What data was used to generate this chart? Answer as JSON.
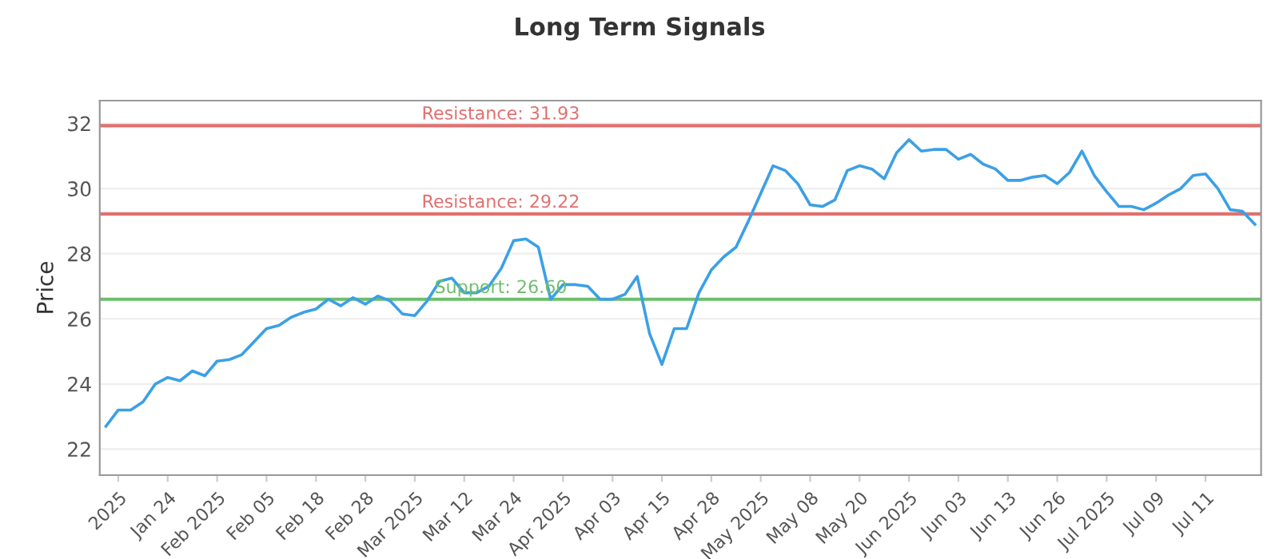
{
  "chart_data": {
    "type": "line",
    "title": "Long Term Signals",
    "ylabel": "Price",
    "categories": [
      null,
      "2025",
      null,
      null,
      null,
      "Jan 24",
      null,
      null,
      null,
      "Feb 2025",
      null,
      null,
      null,
      "Feb 05",
      null,
      null,
      null,
      "Feb 18",
      null,
      null,
      null,
      "Feb 28",
      null,
      null,
      null,
      "Mar 2025",
      null,
      null,
      null,
      "Mar 12",
      null,
      null,
      null,
      "Mar 24",
      null,
      null,
      null,
      "Apr 2025",
      null,
      null,
      null,
      "Apr 03",
      null,
      null,
      null,
      "Apr 15",
      null,
      null,
      null,
      "Apr 28",
      null,
      null,
      null,
      "May 2025",
      null,
      null,
      null,
      "May 08",
      null,
      null,
      null,
      "May 20",
      null,
      null,
      null,
      "Jun 2025",
      null,
      null,
      null,
      "Jun 03",
      null,
      null,
      null,
      "Jun 13",
      null,
      null,
      null,
      "Jun 26",
      null,
      null,
      null,
      "Jul 2025",
      null,
      null,
      null,
      "Jul 09",
      null,
      null,
      null,
      "Jul 11",
      null,
      null,
      null,
      null
    ],
    "series": [
      {
        "color": "#3ba0e6",
        "values": [
          22.7,
          23.2,
          23.2,
          23.45,
          24.0,
          24.2,
          24.1,
          24.4,
          24.25,
          24.7,
          24.75,
          24.9,
          25.3,
          25.7,
          25.8,
          26.05,
          26.2,
          26.3,
          26.6,
          26.4,
          26.65,
          26.45,
          26.7,
          26.55,
          26.15,
          26.1,
          26.55,
          27.15,
          27.25,
          26.8,
          26.8,
          27.0,
          27.55,
          28.4,
          28.45,
          28.2,
          26.6,
          27.05,
          27.05,
          27.0,
          26.6,
          26.6,
          26.75,
          27.3,
          25.55,
          24.6,
          25.7,
          25.7,
          26.8,
          27.5,
          27.9,
          28.2,
          29.0,
          29.85,
          30.7,
          30.55,
          30.15,
          29.5,
          29.45,
          29.65,
          30.55,
          30.7,
          30.6,
          30.3,
          31.1,
          31.5,
          31.15,
          31.2,
          31.2,
          30.9,
          31.05,
          30.75,
          30.6,
          30.25,
          30.25,
          30.35,
          30.4,
          30.15,
          30.5,
          31.15,
          30.4,
          29.9,
          29.45,
          29.45,
          29.35,
          29.55,
          29.8,
          30.0,
          30.4,
          30.45,
          30.0,
          29.35,
          29.3,
          28.9
        ]
      }
    ],
    "ylim": [
      21.2,
      32.7
    ],
    "yticks": [
      22,
      24,
      26,
      28,
      30,
      32
    ],
    "grid": "y",
    "marker": "none",
    "line_style": "solid",
    "ref_lines": [
      {
        "axis": "y",
        "value": 31.93,
        "label": "Resistance: 31.93",
        "color": "#e07070"
      },
      {
        "axis": "y",
        "value": 29.22,
        "label": "Resistance: 29.22",
        "color": "#e07070"
      },
      {
        "axis": "y",
        "value": 26.6,
        "label": "Support: 26.60",
        "color": "#6cbf6c"
      }
    ]
  }
}
